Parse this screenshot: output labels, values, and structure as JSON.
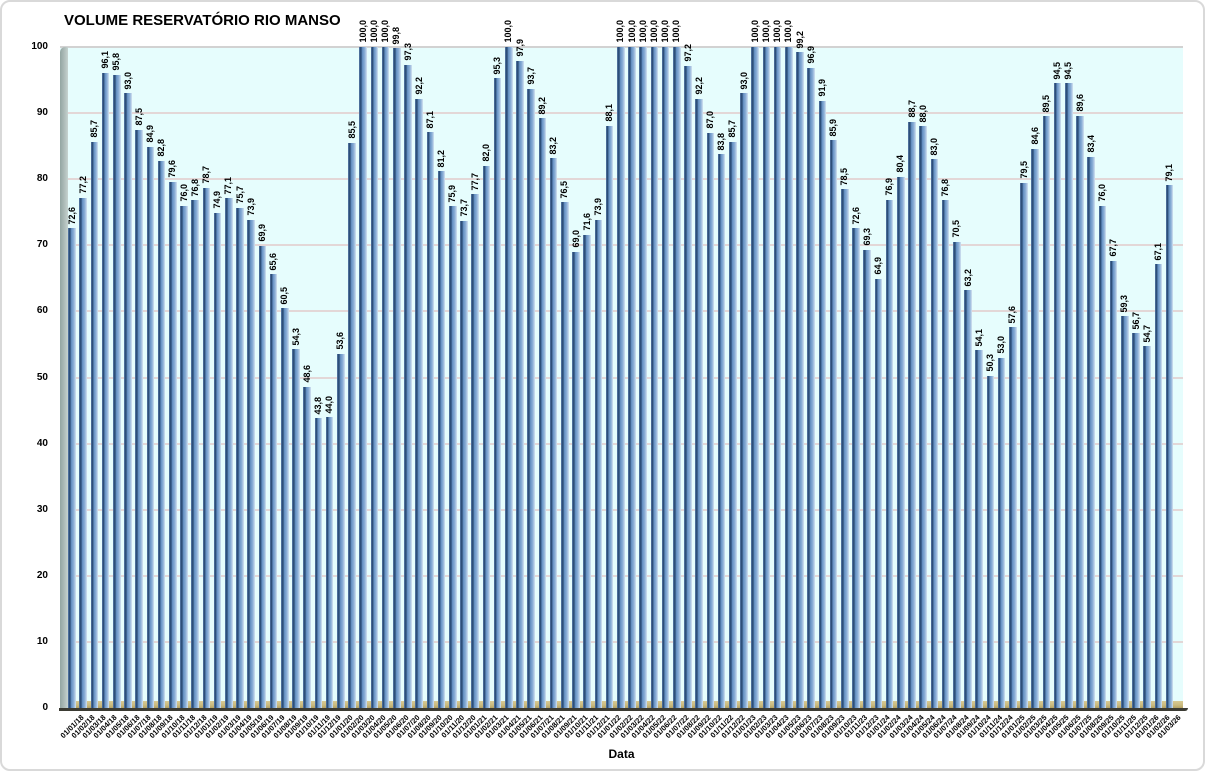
{
  "chart_data": {
    "type": "bar",
    "title": "VOLUME RESERVATÓRIO RIO MANSO",
    "xlabel": "Data",
    "ylabel": "",
    "ylim": [
      0,
      100
    ],
    "yticks": [
      0,
      10,
      20,
      30,
      40,
      50,
      60,
      70,
      80,
      90,
      100
    ],
    "grid": true,
    "legend": "none",
    "decimal_separator": ",",
    "categories": [
      "01/01/18",
      "01/02/18",
      "01/03/18",
      "01/04/18",
      "01/05/18",
      "01/06/18",
      "01/07/18",
      "01/08/18",
      "01/09/18",
      "01/10/18",
      "01/11/18",
      "01/12/18",
      "01/01/19",
      "01/02/19",
      "01/03/19",
      "01/04/19",
      "01/05/19",
      "01/06/19",
      "01/07/19",
      "01/08/19",
      "01/09/19",
      "01/10/19",
      "01/11/19",
      "01/12/19",
      "01/01/20",
      "01/02/20",
      "01/03/20",
      "01/04/20",
      "01/05/20",
      "01/06/20",
      "01/07/20",
      "01/08/20",
      "01/09/20",
      "01/10/20",
      "01/11/20",
      "01/12/20",
      "01/01/21",
      "01/02/21",
      "01/03/21",
      "01/04/21",
      "01/05/21",
      "01/06/21",
      "01/07/21",
      "01/08/21",
      "01/09/21",
      "01/10/21",
      "01/11/21",
      "01/12/21",
      "01/01/22",
      "01/02/22",
      "01/03/22",
      "01/04/22",
      "01/05/22",
      "01/06/22",
      "01/07/22",
      "01/08/22",
      "01/09/22",
      "01/10/22",
      "01/11/22",
      "01/12/22",
      "01/01/23",
      "01/02/23",
      "01/03/23",
      "01/04/23",
      "01/05/23",
      "01/06/23",
      "01/07/23",
      "01/08/23",
      "01/09/23",
      "01/10/23",
      "01/11/23",
      "01/12/23",
      "01/01/24",
      "01/02/24",
      "01/03/24",
      "01/04/24",
      "01/05/24",
      "01/06/24",
      "01/07/24",
      "01/08/24",
      "01/09/24",
      "01/10/24",
      "01/11/24",
      "01/12/24",
      "01/01/25",
      "01/02/25",
      "01/03/25",
      "01/04/25",
      "01/05/25",
      "01/06/25",
      "01/07/25",
      "01/08/25",
      "01/09/25",
      "01/10/25",
      "01/11/25",
      "01/12/25",
      "01/01/26",
      "01/02/26",
      "01/03/26"
    ],
    "values": [
      72.6,
      77.2,
      85.7,
      96.1,
      95.8,
      93.0,
      87.5,
      84.9,
      82.8,
      79.6,
      76.0,
      76.8,
      78.7,
      74.9,
      77.1,
      75.7,
      73.9,
      69.9,
      65.6,
      60.5,
      54.3,
      48.6,
      43.8,
      44.0,
      53.6,
      85.5,
      100.0,
      100.0,
      100.0,
      99.8,
      97.3,
      92.2,
      87.1,
      81.2,
      75.9,
      73.7,
      77.7,
      82.0,
      95.3,
      100.0,
      97.9,
      93.7,
      89.2,
      83.2,
      76.5,
      69.0,
      71.6,
      73.9,
      88.1,
      100.0,
      100.0,
      100.0,
      100.0,
      100.0,
      100.0,
      97.2,
      92.2,
      87.0,
      83.8,
      85.7,
      93.0,
      100.0,
      100.0,
      100.0,
      100.0,
      99.2,
      96.9,
      91.9,
      85.9,
      78.5,
      72.6,
      69.3,
      64.9,
      76.9,
      80.4,
      88.7,
      88.0,
      83.0,
      76.8,
      70.5,
      63.2,
      54.1,
      50.3,
      53.0,
      57.6,
      79.5,
      84.6,
      89.5,
      94.5,
      94.5,
      89.6,
      83.4,
      76.0,
      67.7,
      59.3,
      56.7,
      54.7,
      67.1,
      79.1
    ],
    "value_labels": [
      "72,6",
      "77,2",
      "85,7",
      "96,1",
      "95,8",
      "93,0",
      "87,5",
      "84,9",
      "82,8",
      "79,6",
      "76,0",
      "76,8",
      "78,7",
      "74,9",
      "77,1",
      "75,7",
      "73,9",
      "69,9",
      "65,6",
      "60,5",
      "54,3",
      "48,6",
      "43,8",
      "44,0",
      "53,6",
      "85,5",
      "100,0",
      "100,0",
      "100,0",
      "99,8",
      "97,3",
      "92,2",
      "87,1",
      "81,2",
      "75,9",
      "73,7",
      "77,7",
      "82,0",
      "95,3",
      "100,0",
      "97,9",
      "93,7",
      "89,2",
      "83,2",
      "76,5",
      "69,0",
      "71,6",
      "73,9",
      "88,1",
      "100,0",
      "100,0",
      "100,0",
      "100,0",
      "100,0",
      "100,0",
      "97,2",
      "92,2",
      "87,0",
      "83,8",
      "85,7",
      "93,0",
      "100,0",
      "100,0",
      "100,0",
      "100,0",
      "99,2",
      "96,9",
      "91,9",
      "85,9",
      "78,5",
      "72,6",
      "69,3",
      "64,9",
      "76,9",
      "80,4",
      "88,7",
      "88,0",
      "83,0",
      "76,8",
      "70,5",
      "63,2",
      "54,1",
      "50,3",
      "53,0",
      "57,6",
      "79,5",
      "84,6",
      "89,5",
      "94,5",
      "94,5",
      "89,6",
      "83,4",
      "76,0",
      "67,7",
      "59,3",
      "56,7",
      "54,7",
      "67,1",
      "79,1"
    ],
    "colors": {
      "bar_fill_main": "#6490c2",
      "bar_fill_dark_edge": "#2d4f79",
      "bar_fill_highlight": "#c6d9ec",
      "plot_background": "#e6fdfd",
      "wall_3d": "#a9b8b5",
      "floor_3d": "#c9ba7e",
      "gridline": "#e3d7d7",
      "axis_line": "#3b3b33",
      "text": "#000000",
      "frame_border": "#d9d9d9"
    }
  }
}
